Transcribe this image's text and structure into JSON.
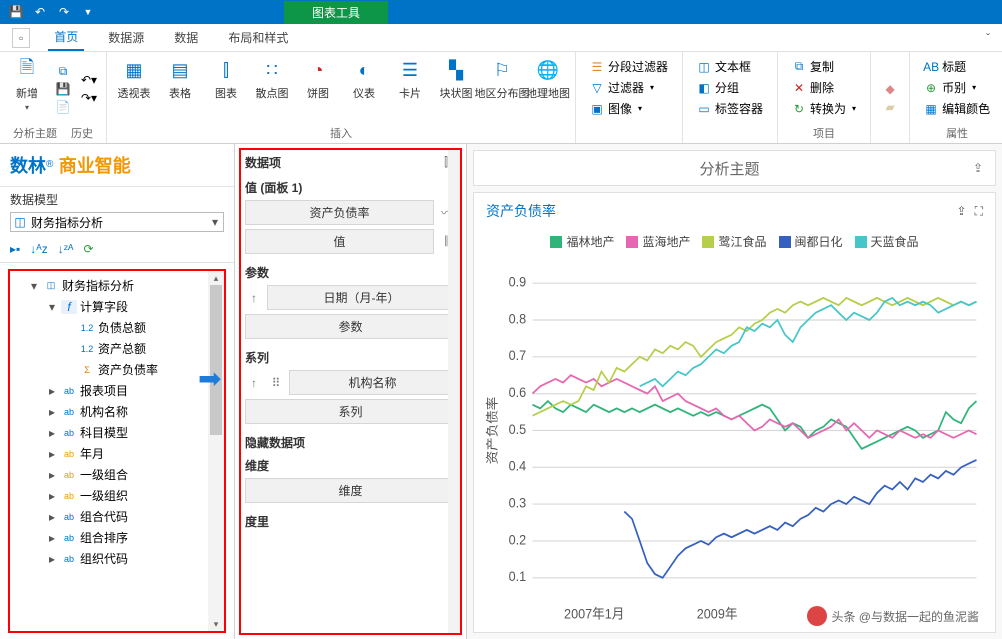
{
  "titlebar": {
    "tool_tab": "图表工具"
  },
  "ribbon": {
    "tabs": [
      "首页",
      "数据源",
      "数据",
      "布局和样式"
    ],
    "active": 0,
    "groups": {
      "g1": {
        "name": "分析主题",
        "btn_new": "新增",
        "btn_history": "历史"
      },
      "insert": {
        "name": "插入",
        "items": [
          "透视表",
          "表格",
          "图表",
          "散点图",
          "饼图",
          "仪表",
          "卡片",
          "块状图",
          "地区分布图",
          "地理地图"
        ]
      },
      "filter": {
        "a": "分段过滤器",
        "b": "过滤器",
        "c": "图像"
      },
      "grp": {
        "a": "文本框",
        "b": "分组",
        "c": "标签容器"
      },
      "edit": {
        "a": "复制",
        "b": "删除",
        "c": "转换为"
      },
      "item_name": "项目",
      "prop": {
        "a": "标题",
        "b": "币别",
        "c": "编辑颜色",
        "name": "属性"
      }
    }
  },
  "left": {
    "brand1": "数林",
    "brand2": "商业智能",
    "model_label": "数据模型",
    "combo_value": "财务指标分析",
    "tree": {
      "root": "财务指标分析",
      "calc": "计算字段",
      "items": [
        "负债总额",
        "资产总额",
        "资产负债率",
        "报表项目",
        "机构名称",
        "科目模型",
        "年月",
        "一级组合",
        "一级组织",
        "组合代码",
        "组合排序",
        "组织代码"
      ]
    }
  },
  "mid": {
    "title": "数据项",
    "panel_label": "值 (面板 1)",
    "v1": "资产负债率",
    "v2": "值",
    "param_label": "参数",
    "p1": "日期（月-年）",
    "p2": "参数",
    "series_label": "系列",
    "s1": "机构名称",
    "s2": "系列",
    "hidden_label": "隐藏数据项",
    "dim_label": "维度",
    "d1": "维度",
    "measure_label": "度里"
  },
  "right": {
    "header_title": "分析主题",
    "card_title": "资产负债率",
    "ylabel": "资产负债率",
    "xlabels": [
      "2007年1月",
      "2009年"
    ],
    "legend": [
      {
        "label": "福林地产",
        "color": "#2fb47a"
      },
      {
        "label": "蓝海地产",
        "color": "#e667b1"
      },
      {
        "label": "鹭江食品",
        "color": "#b6cf4a"
      },
      {
        "label": "闽都日化",
        "color": "#3560bf"
      },
      {
        "label": "天蓝食品",
        "color": "#45c6c9"
      }
    ],
    "yticks": [
      0.1,
      0.2,
      0.3,
      0.4,
      0.5,
      0.6,
      0.7,
      0.8,
      0.9
    ],
    "chart": {
      "ylim": [
        0.05,
        0.95
      ],
      "series": [
        {
          "color": "#2fb47a",
          "pts": [
            0.57,
            0.56,
            0.58,
            0.56,
            0.55,
            0.57,
            0.56,
            0.55,
            0.57,
            0.56,
            0.55,
            0.56,
            0.55,
            0.56,
            0.55,
            0.56,
            0.57,
            0.56,
            0.55,
            0.56,
            0.55,
            0.54,
            0.55,
            0.54,
            0.55,
            0.54,
            0.53,
            0.54,
            0.55,
            0.56,
            0.57,
            0.56,
            0.53,
            0.5,
            0.52,
            0.51,
            0.48,
            0.5,
            0.51,
            0.53,
            0.52,
            0.51,
            0.48,
            0.45,
            0.46,
            0.47,
            0.48,
            0.49,
            0.5,
            0.51,
            0.5,
            0.48,
            0.49,
            0.5,
            0.55,
            0.53,
            0.52,
            0.56,
            0.58
          ]
        },
        {
          "color": "#e667b1",
          "pts": [
            0.6,
            0.62,
            0.63,
            0.64,
            0.63,
            0.65,
            0.64,
            0.63,
            0.64,
            0.62,
            0.63,
            0.64,
            0.63,
            0.62,
            0.61,
            0.6,
            0.62,
            0.58,
            0.59,
            0.6,
            0.58,
            0.57,
            0.56,
            0.55,
            0.56,
            0.54,
            0.53,
            0.54,
            0.52,
            0.5,
            0.51,
            0.53,
            0.52,
            0.51,
            0.52,
            0.5,
            0.48,
            0.49,
            0.5,
            0.51,
            0.53,
            0.5,
            0.52,
            0.5,
            0.48,
            0.5,
            0.49,
            0.48,
            0.5,
            0.49,
            0.48,
            0.49,
            0.48,
            0.5,
            0.49,
            0.48,
            0.49,
            0.5,
            0.49
          ]
        },
        {
          "color": "#b6cf4a",
          "pts": [
            0.54,
            0.55,
            0.56,
            0.57,
            0.58,
            0.57,
            0.58,
            0.62,
            0.61,
            0.66,
            0.63,
            0.67,
            0.66,
            0.68,
            0.7,
            0.69,
            0.72,
            0.71,
            0.73,
            0.72,
            0.74,
            0.73,
            0.7,
            0.72,
            0.74,
            0.75,
            0.76,
            0.78,
            0.77,
            0.79,
            0.8,
            0.82,
            0.83,
            0.82,
            0.84,
            0.85,
            0.84,
            0.85,
            0.86,
            0.85,
            0.84,
            0.86,
            0.85,
            0.84,
            0.85,
            0.86,
            0.85,
            0.84,
            0.85,
            0.86,
            0.85,
            0.84,
            0.85,
            0.86,
            0.85,
            0.84,
            0.85,
            0.84,
            0.85
          ]
        },
        {
          "color": "#3560bf",
          "pts": [
            null,
            null,
            null,
            null,
            null,
            null,
            null,
            null,
            null,
            null,
            null,
            null,
            0.28,
            0.26,
            0.2,
            0.14,
            0.11,
            0.1,
            0.13,
            0.16,
            0.18,
            0.19,
            0.2,
            0.19,
            0.21,
            0.22,
            0.21,
            0.22,
            0.23,
            0.22,
            0.23,
            0.24,
            0.23,
            0.25,
            0.24,
            0.26,
            0.27,
            0.29,
            0.28,
            0.3,
            0.31,
            0.3,
            0.32,
            0.31,
            0.3,
            0.33,
            0.35,
            0.34,
            0.36,
            0.34,
            0.37,
            0.36,
            0.38,
            0.37,
            0.39,
            0.38,
            0.4,
            0.41,
            0.42
          ]
        },
        {
          "color": "#45c6c9",
          "pts": [
            null,
            null,
            null,
            null,
            null,
            null,
            null,
            null,
            null,
            null,
            null,
            null,
            null,
            null,
            0.62,
            0.63,
            0.64,
            0.62,
            0.64,
            0.66,
            0.65,
            0.67,
            0.68,
            0.7,
            0.72,
            0.71,
            0.73,
            0.74,
            0.78,
            0.77,
            0.79,
            0.78,
            0.8,
            0.76,
            0.74,
            0.78,
            0.8,
            0.82,
            0.83,
            0.84,
            0.82,
            0.8,
            0.82,
            0.81,
            0.8,
            0.82,
            0.85,
            0.86,
            0.84,
            0.85,
            0.84,
            0.85,
            0.84,
            0.82,
            0.83,
            0.84,
            0.85,
            0.84,
            0.85
          ]
        }
      ]
    }
  },
  "watermark": "头条 @与数据一起的鱼泥酱"
}
